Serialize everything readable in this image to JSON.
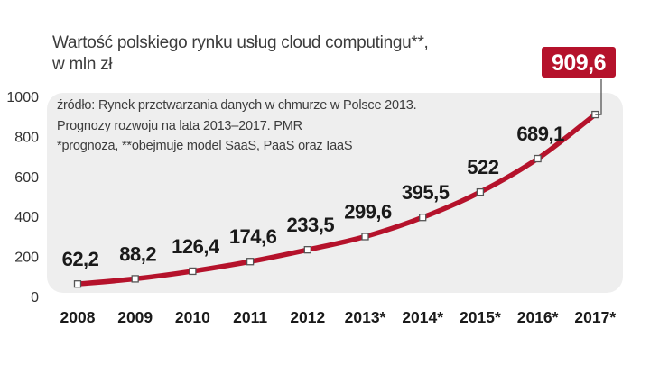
{
  "chart_data": {
    "type": "line",
    "title": "Wartość polskiego rynku usług cloud computingu**,",
    "subtitle": "w mln zł",
    "notes": [
      "źródło: Rynek przetwarzania danych w chmurze w Polsce 2013.",
      "Prognozy rozwoju na lata 2013–2017. PMR",
      "*prognoza, **obejmuje model SaaS, PaaS oraz IaaS"
    ],
    "categories": [
      "2008",
      "2009",
      "2010",
      "2011",
      "2012",
      "2013*",
      "2014*",
      "2015*",
      "2016*",
      "2017*"
    ],
    "values": [
      62.2,
      88.2,
      126.4,
      174.6,
      233.5,
      299.6,
      395.5,
      522,
      689.1,
      909.6
    ],
    "value_labels": [
      "62,2",
      "88,2",
      "126,4",
      "174,6",
      "233,5",
      "299,6",
      "395,5",
      "522",
      "689,1",
      "909,6"
    ],
    "ylim": [
      0,
      1000
    ],
    "yticks": [
      0,
      200,
      400,
      600,
      800,
      1000
    ],
    "highlight_index": 9,
    "colors": {
      "line": "#b5122b",
      "panel": "#eeeeee",
      "highlight_box": "#b5122b",
      "text": "#1a1a1a"
    }
  }
}
